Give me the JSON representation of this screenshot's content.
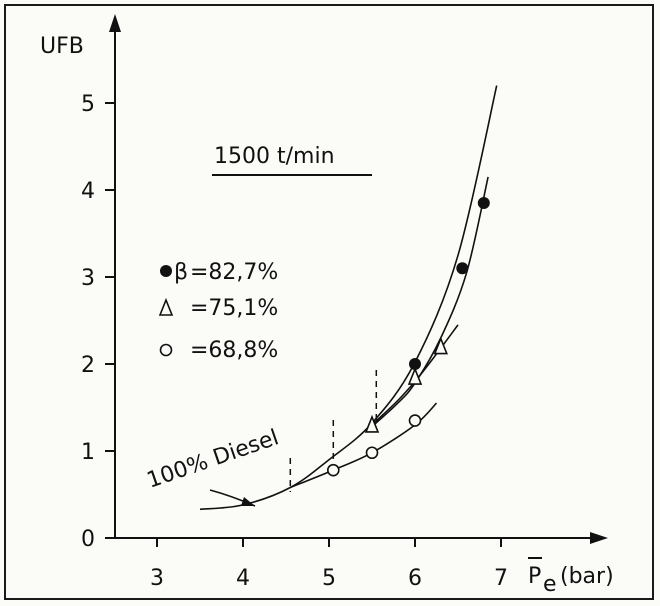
{
  "chart_data": {
    "type": "scatter",
    "title": "1500 t/min",
    "ylabel": "UFB",
    "xlabel_symbol": "P",
    "xlabel_subscript": "e",
    "xlabel_unit": "(bar)",
    "xlim": [
      2.5,
      7.5
    ],
    "ylim": [
      0,
      5.5
    ],
    "xticks": [
      "3",
      "4",
      "5",
      "6",
      "7"
    ],
    "yticks": [
      "0",
      "1",
      "2",
      "3",
      "4",
      "5"
    ],
    "grid": false,
    "legend_position": "center-left",
    "legend_symbol": "β",
    "series": [
      {
        "name": "=82,7%",
        "marker": "filled-circle",
        "x": [
          6.0,
          6.55,
          6.8
        ],
        "y": [
          2.0,
          3.1,
          3.85
        ],
        "fit_curve": [
          [
            5.5,
            1.28
          ],
          [
            5.8,
            1.55
          ],
          [
            6.0,
            1.78
          ],
          [
            6.3,
            2.3
          ],
          [
            6.6,
            3.05
          ],
          [
            6.85,
            4.15
          ]
        ]
      },
      {
        "name": "=75,1%",
        "marker": "triangle",
        "x": [
          5.5,
          6.0,
          6.3
        ],
        "y": [
          1.3,
          1.85,
          2.2
        ],
        "fit_curve": [
          [
            5.5,
            1.3
          ],
          [
            5.8,
            1.58
          ],
          [
            6.0,
            1.8
          ],
          [
            6.2,
            2.05
          ],
          [
            6.5,
            2.45
          ]
        ]
      },
      {
        "name": "=68,8%",
        "marker": "open-circle",
        "x": [
          5.05,
          5.5,
          6.0
        ],
        "y": [
          0.78,
          0.98,
          1.35
        ],
        "fit_curve": [
          [
            4.55,
            0.58
          ],
          [
            5.05,
            0.78
          ],
          [
            5.5,
            0.98
          ],
          [
            6.0,
            1.3
          ],
          [
            6.25,
            1.55
          ]
        ]
      },
      {
        "name": "100% Diesel",
        "marker": "none",
        "x": [
          3.5,
          4.0,
          4.55,
          5.0,
          5.5,
          6.0,
          6.5,
          6.95
        ],
        "y": [
          0.33,
          0.38,
          0.58,
          0.9,
          1.32,
          2.02,
          3.25,
          5.2
        ]
      }
    ],
    "vertical_markers_x": [
      4.55,
      5.05,
      5.55
    ]
  }
}
